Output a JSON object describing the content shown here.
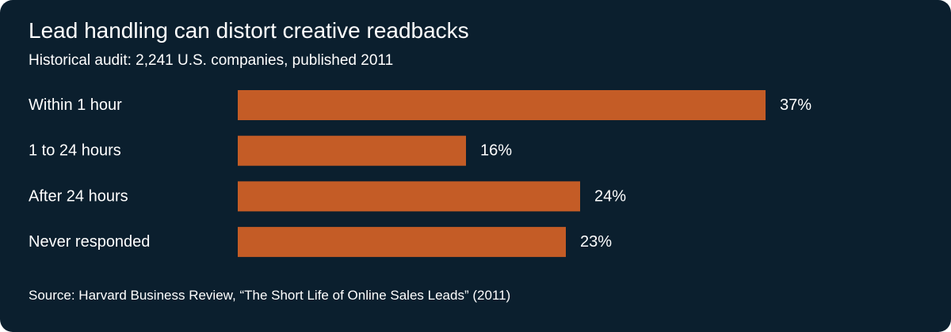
{
  "title": "Lead handling can distort creative readbacks",
  "subtitle": "Historical audit: 2,241 U.S. companies, published 2011",
  "source": "Source: Harvard Business Review, “The Short Life of Online Sales Leads” (2011)",
  "colors": {
    "background": "#0b1f2e",
    "bar": "#c45c26",
    "text": "#ffffff"
  },
  "chart_data": {
    "type": "bar",
    "orientation": "horizontal",
    "categories": [
      "Within 1 hour",
      "1 to 24 hours",
      "After 24 hours",
      "Never responded"
    ],
    "values": [
      37,
      16,
      24,
      23
    ],
    "value_labels": [
      "37%",
      "16%",
      "24%",
      "23%"
    ],
    "unit": "%",
    "xlim": [
      0,
      37
    ],
    "grid": false,
    "legend": "none"
  }
}
